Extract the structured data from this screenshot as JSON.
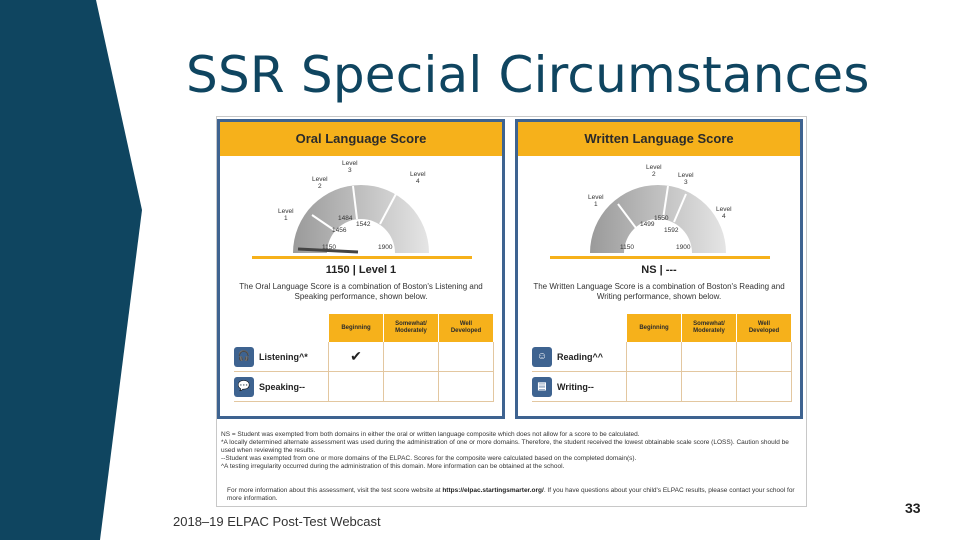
{
  "slide": {
    "title": "SSR Special Circumstances",
    "footer": "2018–19 ELPAC Post-Test Webcast",
    "page_number": "33"
  },
  "colors": {
    "navy": "#0f4560",
    "accent_gold": "#f6b11b",
    "panel_border": "#3e6390"
  },
  "oral": {
    "header": "Oral Language Score",
    "levels": [
      "Level\n1",
      "Level\n2",
      "Level\n3",
      "Level\n4"
    ],
    "ticks": [
      "1484",
      "1542",
      "1456",
      "1150",
      "1900"
    ],
    "score": "1150",
    "separator": "|",
    "level_text": "Level 1",
    "description": "The Oral Language Score is a combination of Boston's Listening and Speaking performance, shown below.",
    "columns": [
      "Beginning",
      "Somewhat/\nModerately",
      "Well\nDeveloped"
    ],
    "rows": [
      {
        "label": "Listening^*",
        "icon": "headphones-icon",
        "marks": [
          "✔",
          "",
          ""
        ]
      },
      {
        "label": "Speaking--",
        "icon": "speech-bubble-icon",
        "marks": [
          "",
          "",
          ""
        ]
      }
    ]
  },
  "written": {
    "header": "Written Language Score",
    "levels": [
      "Level\n1",
      "Level\n2",
      "Level\n3",
      "Level\n4"
    ],
    "ticks": [
      "1550",
      "1499",
      "1592",
      "1150",
      "1900"
    ],
    "score": "NS",
    "separator": "|",
    "level_text": "---",
    "description": "The Written Language Score is a combination of Boston's Reading and Writing performance, shown below.",
    "columns": [
      "Beginning",
      "Somewhat/\nModerately",
      "Well\nDeveloped"
    ],
    "rows": [
      {
        "label": "Reading^^",
        "icon": "reader-icon",
        "marks": [
          "",
          "",
          ""
        ]
      },
      {
        "label": "Writing--",
        "icon": "document-icon",
        "marks": [
          "",
          "",
          ""
        ]
      }
    ]
  },
  "notes": [
    "NS = Student was exempted from both domains in either the oral or written language composite which does not allow for a score to be calculated.",
    "*A locally determined alternate assessment was used during the administration of one or more domains. Therefore, the student received the lowest obtainable scale score (LOSS). Caution should be used when reviewing the results.",
    "--Student was exempted from one or more domains of the ELPAC. Scores for the composite were calculated based on the completed domain(s).",
    "^A testing irregularity occurred during the administration of this domain. More information can be obtained at the school."
  ],
  "more_info": {
    "prefix": "For more information about this assessment, visit the test score website at ",
    "link": "https://elpac.startingsmarter.org/",
    "suffix": ". If you have questions about your child's ELPAC results, please contact your school for more information."
  }
}
